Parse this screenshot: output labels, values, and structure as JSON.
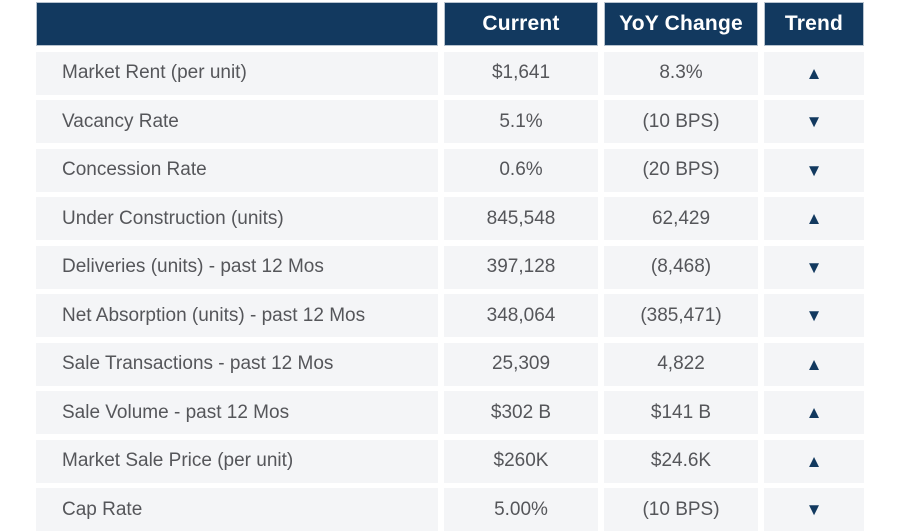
{
  "colors": {
    "header_bg": "#12395f",
    "header_text": "#ffffff",
    "row_bg": "#f4f5f7",
    "text_gray": "#55565a",
    "trend_navy": "#12395f"
  },
  "icons": {
    "up_triangle": "▲",
    "down_triangle": "▼"
  },
  "chart_data": {
    "type": "table",
    "title": "",
    "columns": [
      "",
      "Current",
      "YoY Change",
      "Trend"
    ],
    "rows": [
      {
        "metric": "Market Rent (per unit)",
        "current": "$1,641",
        "yoy": "8.3%",
        "trend": "up"
      },
      {
        "metric": "Vacancy Rate",
        "current": "5.1%",
        "yoy": "(10 BPS)",
        "trend": "down"
      },
      {
        "metric": "Concession Rate",
        "current": "0.6%",
        "yoy": "(20 BPS)",
        "trend": "down"
      },
      {
        "metric": "Under Construction (units)",
        "current": "845,548",
        "yoy": "62,429",
        "trend": "up"
      },
      {
        "metric": "Deliveries (units) - past 12 Mos",
        "current": "397,128",
        "yoy": "(8,468)",
        "trend": "down"
      },
      {
        "metric": "Net Absorption (units) - past 12 Mos",
        "current": "348,064",
        "yoy": "(385,471)",
        "trend": "down"
      },
      {
        "metric": "Sale Transactions - past 12 Mos",
        "current": "25,309",
        "yoy": "4,822",
        "trend": "up"
      },
      {
        "metric": "Sale Volume - past 12 Mos",
        "current": "$302 B",
        "yoy": "$141 B",
        "trend": "up"
      },
      {
        "metric": "Market Sale Price (per unit)",
        "current": "$260K",
        "yoy": "$24.6K",
        "trend": "up"
      },
      {
        "metric": "Cap Rate",
        "current": "5.00%",
        "yoy": "(10 BPS)",
        "trend": "down"
      }
    ]
  }
}
